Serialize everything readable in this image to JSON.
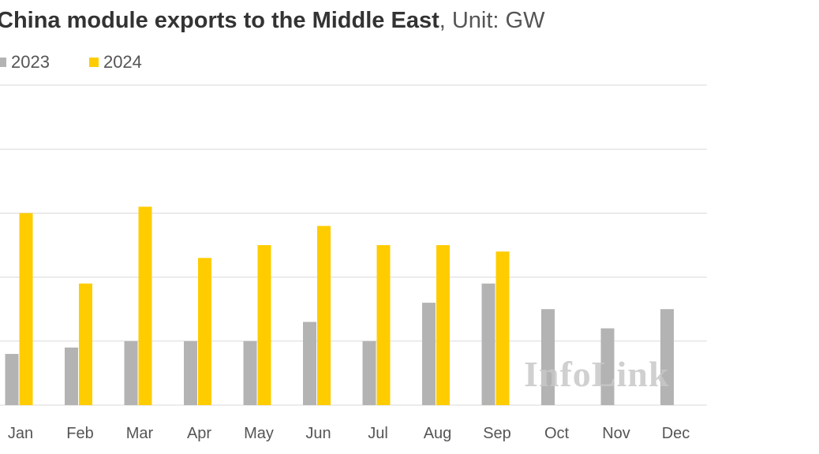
{
  "title": {
    "bold": "China module exports to the Middle East",
    "light": ", Unit: GW"
  },
  "legend": [
    {
      "label": "2023",
      "color": "#b3b3b3"
    },
    {
      "label": "2024",
      "color": "#ffcc00"
    }
  ],
  "watermark": "InfoLink",
  "chart_data": {
    "type": "bar",
    "title": "China module exports to the Middle East, Unit: GW",
    "categories": [
      "Jan",
      "Feb",
      "Mar",
      "Apr",
      "May",
      "Jun",
      "Jul",
      "Aug",
      "Sep",
      "Oct",
      "Nov",
      "Dec"
    ],
    "series": [
      {
        "name": "2023",
        "color": "#b3b3b3",
        "values": [
          0.8,
          0.9,
          1.0,
          1.0,
          1.0,
          1.3,
          1.0,
          1.6,
          1.9,
          1.5,
          1.2,
          1.5
        ]
      },
      {
        "name": "2024",
        "color": "#ffcc00",
        "values": [
          3.0,
          1.9,
          3.1,
          2.3,
          2.5,
          2.8,
          2.5,
          2.5,
          2.4,
          null,
          null,
          null
        ]
      }
    ],
    "ylim": [
      0,
      5
    ],
    "gridlines": [
      1,
      2,
      3,
      4,
      5
    ],
    "grid": true,
    "legend_position": "top-left"
  }
}
